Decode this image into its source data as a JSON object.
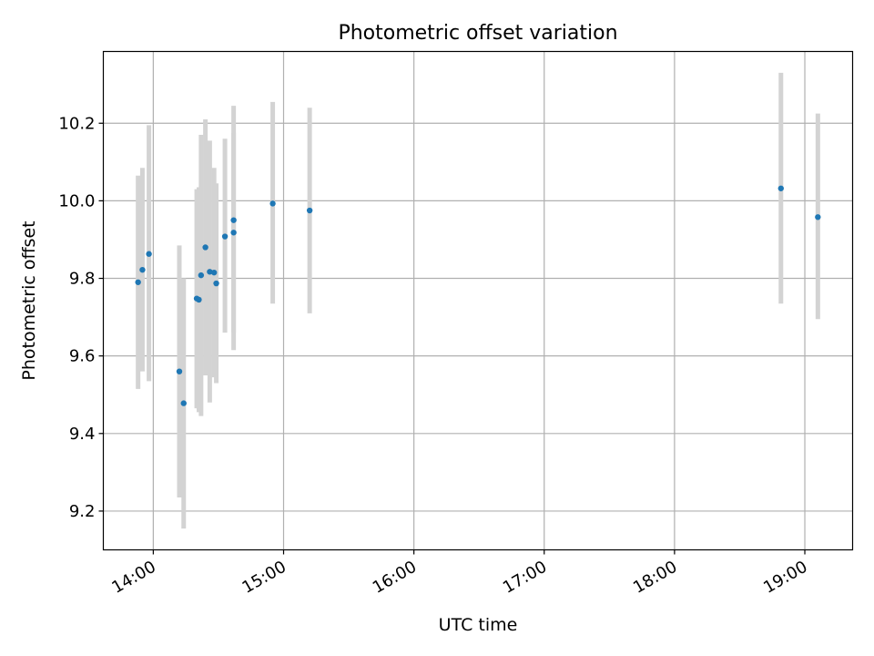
{
  "chart_data": {
    "type": "scatter",
    "title": "Photometric offset variation",
    "xlabel": "UTC time",
    "ylabel": "Photometric offset",
    "x_is_time": true,
    "xlim": [
      "13:37",
      "19:22"
    ],
    "ylim": [
      9.1,
      10.385
    ],
    "xticks": [
      "14:00",
      "15:00",
      "16:00",
      "17:00",
      "18:00",
      "19:00"
    ],
    "yticks": [
      "9.2",
      "9.4",
      "9.6",
      "9.8",
      "10.0",
      "10.2"
    ],
    "grid": true,
    "marker_color": "#1f77b4",
    "errorbar_color": "#d3d3d3",
    "points": [
      {
        "t": "13:53",
        "y": 9.79,
        "lo": 9.515,
        "hi": 10.065
      },
      {
        "t": "13:55",
        "y": 9.822,
        "lo": 9.56,
        "hi": 10.085
      },
      {
        "t": "13:58",
        "y": 9.863,
        "lo": 9.535,
        "hi": 10.195
      },
      {
        "t": "14:12",
        "y": 9.56,
        "lo": 9.235,
        "hi": 9.885
      },
      {
        "t": "14:14",
        "y": 9.478,
        "lo": 9.155,
        "hi": 9.8
      },
      {
        "t": "14:20",
        "y": 9.748,
        "lo": 9.465,
        "hi": 10.03
      },
      {
        "t": "14:21",
        "y": 9.745,
        "lo": 9.455,
        "hi": 10.035
      },
      {
        "t": "14:22",
        "y": 9.808,
        "lo": 9.445,
        "hi": 10.17
      },
      {
        "t": "14:24",
        "y": 9.88,
        "lo": 9.55,
        "hi": 10.21
      },
      {
        "t": "14:26",
        "y": 9.817,
        "lo": 9.48,
        "hi": 10.155
      },
      {
        "t": "14:28",
        "y": 9.815,
        "lo": 9.545,
        "hi": 10.085
      },
      {
        "t": "14:29",
        "y": 9.787,
        "lo": 9.53,
        "hi": 10.045
      },
      {
        "t": "14:33",
        "y": 9.908,
        "lo": 9.66,
        "hi": 10.16
      },
      {
        "t": "14:37",
        "y": 9.918,
        "lo": 9.66,
        "hi": 10.175
      },
      {
        "t": "14:37",
        "y": 9.95,
        "lo": 9.615,
        "hi": 10.245
      },
      {
        "t": "14:55",
        "y": 9.993,
        "lo": 9.735,
        "hi": 10.255
      },
      {
        "t": "15:12",
        "y": 9.975,
        "lo": 9.71,
        "hi": 10.24
      },
      {
        "t": "18:49",
        "y": 10.032,
        "lo": 9.735,
        "hi": 10.33
      },
      {
        "t": "19:06",
        "y": 9.958,
        "lo": 9.695,
        "hi": 10.225
      }
    ]
  }
}
